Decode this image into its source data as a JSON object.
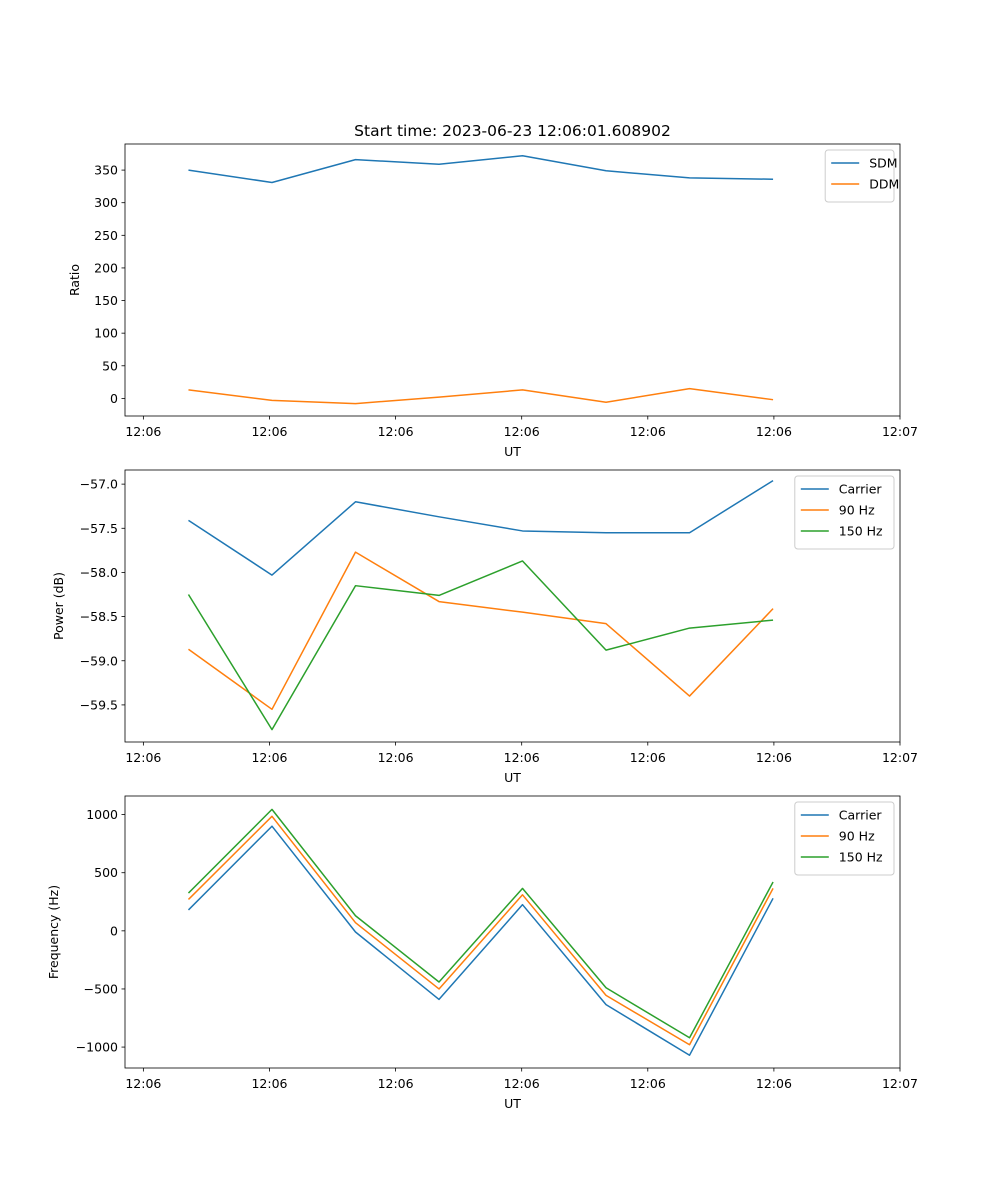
{
  "figure": {
    "title": "Start time: 2023-06-23 12:06:01.608902"
  },
  "colors": {
    "blue": "#1f77b4",
    "orange": "#ff7f0e",
    "green": "#2ca02c"
  },
  "chart_data": [
    {
      "type": "line",
      "title": "Start time: 2023-06-23 12:06:01.608902",
      "xlabel": "UT",
      "ylabel": "Ratio",
      "x": [
        1,
        2,
        3,
        4,
        5,
        6,
        7,
        8
      ],
      "xlim": [
        0.24,
        9.52
      ],
      "xticks": [
        0.46,
        1.97,
        3.48,
        4.99,
        6.5,
        8.01,
        9.52
      ],
      "xticklabels": [
        "12:06",
        "12:06",
        "12:06",
        "12:06",
        "12:06",
        "12:06",
        "12:07"
      ],
      "ylim": [
        -27,
        390
      ],
      "yticks": [
        0,
        50,
        100,
        150,
        200,
        250,
        300,
        350
      ],
      "yticklabels": [
        "0",
        "50",
        "100",
        "150",
        "200",
        "250",
        "300",
        "350"
      ],
      "legend": "top-right",
      "grid": false,
      "series": [
        {
          "name": "SDM",
          "color": "#1f77b4",
          "values": [
            350,
            331,
            366,
            359,
            372,
            349,
            338,
            336
          ]
        },
        {
          "name": "DDM",
          "color": "#ff7f0e",
          "values": [
            13,
            -3,
            -8,
            2,
            13,
            -6,
            15,
            -2
          ]
        }
      ]
    },
    {
      "type": "line",
      "title": "",
      "xlabel": "UT",
      "ylabel": "Power (dB)",
      "x": [
        1,
        2,
        3,
        4,
        5,
        6,
        7,
        8
      ],
      "xlim": [
        0.24,
        9.52
      ],
      "xticks": [
        0.46,
        1.97,
        3.48,
        4.99,
        6.5,
        8.01,
        9.52
      ],
      "xticklabels": [
        "12:06",
        "12:06",
        "12:06",
        "12:06",
        "12:06",
        "12:06",
        "12:07"
      ],
      "ylim": [
        -59.92,
        -56.84
      ],
      "yticks": [
        -59.5,
        -59.0,
        -58.5,
        -58.0,
        -57.5,
        -57.0
      ],
      "yticklabels": [
        "−59.5",
        "−59.0",
        "−58.5",
        "−58.0",
        "−57.5",
        "−57.0"
      ],
      "legend": "top-right",
      "grid": false,
      "series": [
        {
          "name": "Carrier",
          "color": "#1f77b4",
          "values": [
            -57.41,
            -58.03,
            -57.2,
            -57.37,
            -57.53,
            -57.55,
            -57.55,
            -56.96
          ]
        },
        {
          "name": "90 Hz",
          "color": "#ff7f0e",
          "values": [
            -58.87,
            -59.55,
            -57.77,
            -58.33,
            -58.45,
            -58.58,
            -59.4,
            -58.41
          ]
        },
        {
          "name": "150 Hz",
          "color": "#2ca02c",
          "values": [
            -58.25,
            -59.78,
            -58.15,
            -58.26,
            -57.87,
            -58.88,
            -58.63,
            -58.54
          ]
        }
      ]
    },
    {
      "type": "line",
      "title": "",
      "xlabel": "UT",
      "ylabel": "Frequency (Hz)",
      "x": [
        1,
        2,
        3,
        4,
        5,
        6,
        7,
        8
      ],
      "xlim": [
        0.24,
        9.52
      ],
      "xticks": [
        0.46,
        1.97,
        3.48,
        4.99,
        6.5,
        8.01,
        9.52
      ],
      "xticklabels": [
        "12:06",
        "12:06",
        "12:06",
        "12:06",
        "12:06",
        "12:06",
        "12:07"
      ],
      "ylim": [
        -1180,
        1160
      ],
      "yticks": [
        -1000,
        -500,
        0,
        500,
        1000
      ],
      "yticklabels": [
        "−1000",
        "−500",
        "0",
        "500",
        "1000"
      ],
      "legend": "top-right",
      "grid": false,
      "series": [
        {
          "name": "Carrier",
          "color": "#1f77b4",
          "values": [
            180,
            900,
            -10,
            -590,
            225,
            -635,
            -1070,
            280
          ]
        },
        {
          "name": "90 Hz",
          "color": "#ff7f0e",
          "values": [
            270,
            985,
            70,
            -500,
            310,
            -555,
            -980,
            365
          ]
        },
        {
          "name": "150 Hz",
          "color": "#2ca02c",
          "values": [
            325,
            1045,
            130,
            -440,
            365,
            -490,
            -920,
            420
          ]
        }
      ]
    }
  ]
}
